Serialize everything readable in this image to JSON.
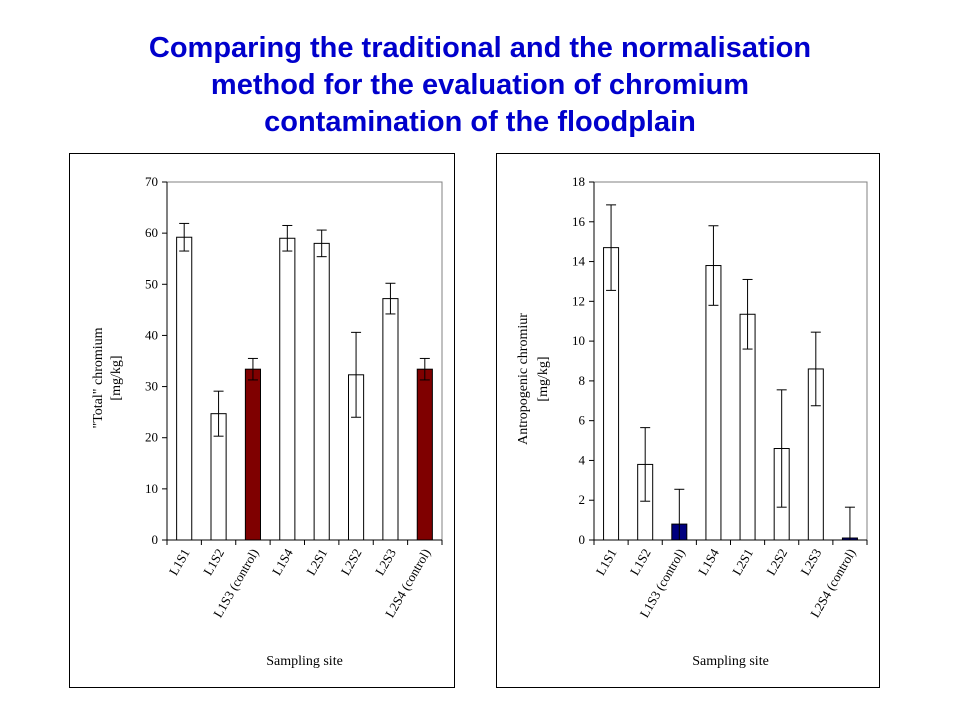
{
  "title": {
    "line1": "Comparing the traditional and the normalisation",
    "line2": "method for the evaluation of chromium",
    "line3": "contamination of the floodplain"
  },
  "colors": {
    "title": "#0000cc",
    "bar_default": "#ffffff",
    "control_left": "#7f0000",
    "control_right": "#00007f"
  },
  "chart_data": [
    {
      "type": "bar",
      "categories": [
        "L1S1",
        "L1S2",
        "L1S3 (control)",
        "L1S4",
        "L2S1",
        "L2S2",
        "L2S3",
        "L2S4 (control)"
      ],
      "values": [
        59.2,
        24.7,
        33.4,
        59.0,
        58.0,
        32.3,
        47.2,
        33.4
      ],
      "errors": [
        2.7,
        4.4,
        2.1,
        2.5,
        2.6,
        8.3,
        3.0,
        2.1
      ],
      "highlight": [
        false,
        false,
        true,
        false,
        false,
        false,
        false,
        true
      ],
      "xlabel": "Sampling site",
      "ylabel_line1": "\"Total\" chromium",
      "ylabel_line2": "[mg/kg]",
      "ylim": [
        0,
        70
      ],
      "yticks": [
        0,
        10,
        20,
        30,
        40,
        50,
        60,
        70
      ],
      "grid": false,
      "legend": "none"
    },
    {
      "type": "bar",
      "categories": [
        "L1S1",
        "L1S2",
        "L1S3 (control)",
        "L1S4",
        "L2S1",
        "L2S2",
        "L2S3",
        "L2S4 (control)"
      ],
      "values": [
        14.7,
        3.8,
        0.8,
        13.8,
        11.35,
        4.6,
        8.6,
        0.1
      ],
      "errors": [
        2.15,
        1.85,
        1.75,
        2.0,
        1.75,
        2.95,
        1.85,
        1.55
      ],
      "highlight": [
        false,
        false,
        true,
        false,
        false,
        false,
        false,
        true
      ],
      "xlabel": "Sampling site",
      "ylabel_line1": "Antropogenic chromiur",
      "ylabel_line2": "[mg/kg]",
      "ylim": [
        0,
        18
      ],
      "yticks": [
        0,
        2,
        4,
        6,
        8,
        10,
        12,
        14,
        16,
        18
      ],
      "grid": false,
      "legend": "none"
    }
  ]
}
